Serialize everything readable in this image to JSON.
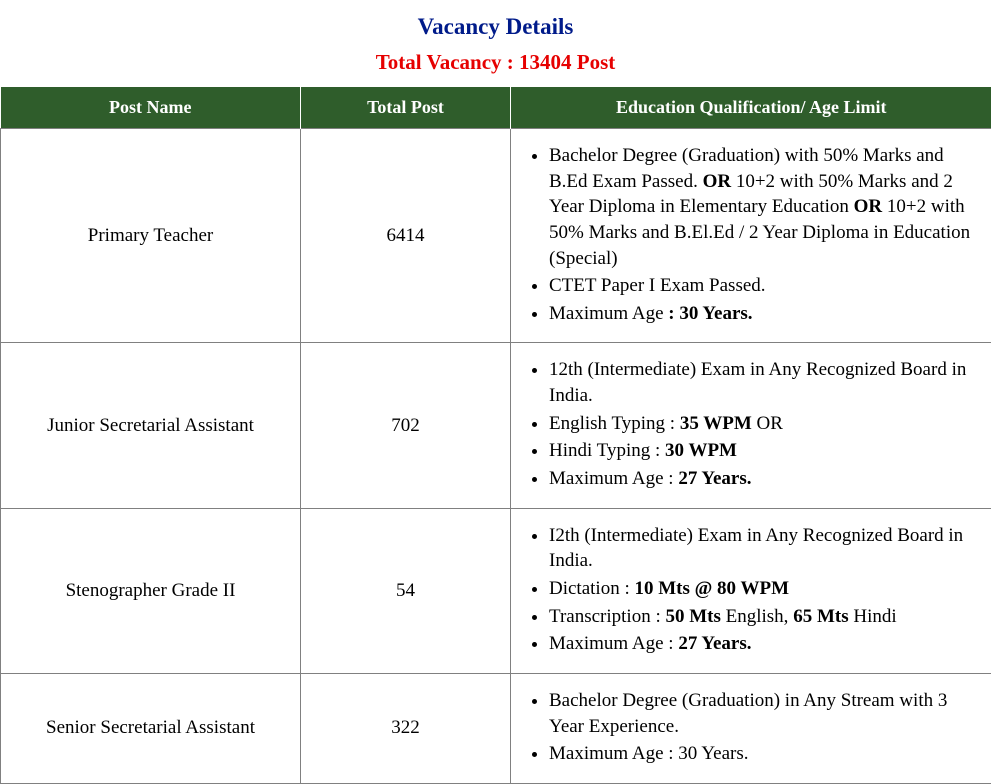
{
  "heading": {
    "title": "Vacancy Details",
    "title_color": "#001b8a",
    "subtitle": "Total Vacancy : 13404 Post",
    "subtitle_color": "#e60000"
  },
  "table": {
    "header_bg": "#2f5d2b",
    "header_fg": "#ffffff",
    "border_color": "#808080",
    "columns": [
      "Post Name",
      "Total Post",
      "Education Qualification/ Age Limit"
    ],
    "rows": [
      {
        "post": "Primary Teacher",
        "total": "6414",
        "qual": [
          [
            {
              "t": "Bachelor Degree (Graduation) with 50% Marks and B.Ed Exam Passed. ",
              "b": false
            },
            {
              "t": "OR",
              "b": true
            },
            {
              "t": " 10+2 with 50% Marks and 2 Year Diploma in Elementary Education ",
              "b": false
            },
            {
              "t": "OR",
              "b": true
            },
            {
              "t": " 10+2 with 50% Marks and B.El.Ed / 2 Year Diploma in Education (Special)",
              "b": false
            }
          ],
          [
            {
              "t": "CTET Paper I Exam Passed.",
              "b": false
            }
          ],
          [
            {
              "t": "Maximum Age ",
              "b": false
            },
            {
              "t": ": 30 Years.",
              "b": true
            }
          ]
        ]
      },
      {
        "post": "Junior Secretarial Assistant",
        "total": "702",
        "qual": [
          [
            {
              "t": "12th (Intermediate) Exam in Any Recognized Board in India.",
              "b": false
            }
          ],
          [
            {
              "t": "English Typing : ",
              "b": false
            },
            {
              "t": "35 WPM",
              "b": true
            },
            {
              "t": " OR",
              "b": false
            }
          ],
          [
            {
              "t": "Hindi Typing : ",
              "b": false
            },
            {
              "t": "30 WPM",
              "b": true
            }
          ],
          [
            {
              "t": "Maximum Age : ",
              "b": false
            },
            {
              "t": "27 Years.",
              "b": true
            }
          ]
        ]
      },
      {
        "post": "Stenographer Grade II",
        "total": "54",
        "qual": [
          [
            {
              "t": "I2th (Intermediate) Exam in Any Recognized Board in India.",
              "b": false
            }
          ],
          [
            {
              "t": "Dictation : ",
              "b": false
            },
            {
              "t": "10 Mts @ 80 WPM",
              "b": true
            }
          ],
          [
            {
              "t": "Transcription : ",
              "b": false
            },
            {
              "t": "50 Mts",
              "b": true
            },
            {
              "t": " English,  ",
              "b": false
            },
            {
              "t": "65 Mts",
              "b": true
            },
            {
              "t": " Hindi",
              "b": false
            }
          ],
          [
            {
              "t": "Maximum Age : ",
              "b": false
            },
            {
              "t": "27 Years.",
              "b": true
            }
          ]
        ]
      },
      {
        "post": "Senior Secretarial Assistant",
        "total": "322",
        "qual": [
          [
            {
              "t": "Bachelor Degree (Graduation) in Any Stream with 3 Year Experience.",
              "b": false
            }
          ],
          [
            {
              "t": "Maximum Age : 30 Years.",
              "b": false
            }
          ]
        ]
      }
    ]
  }
}
